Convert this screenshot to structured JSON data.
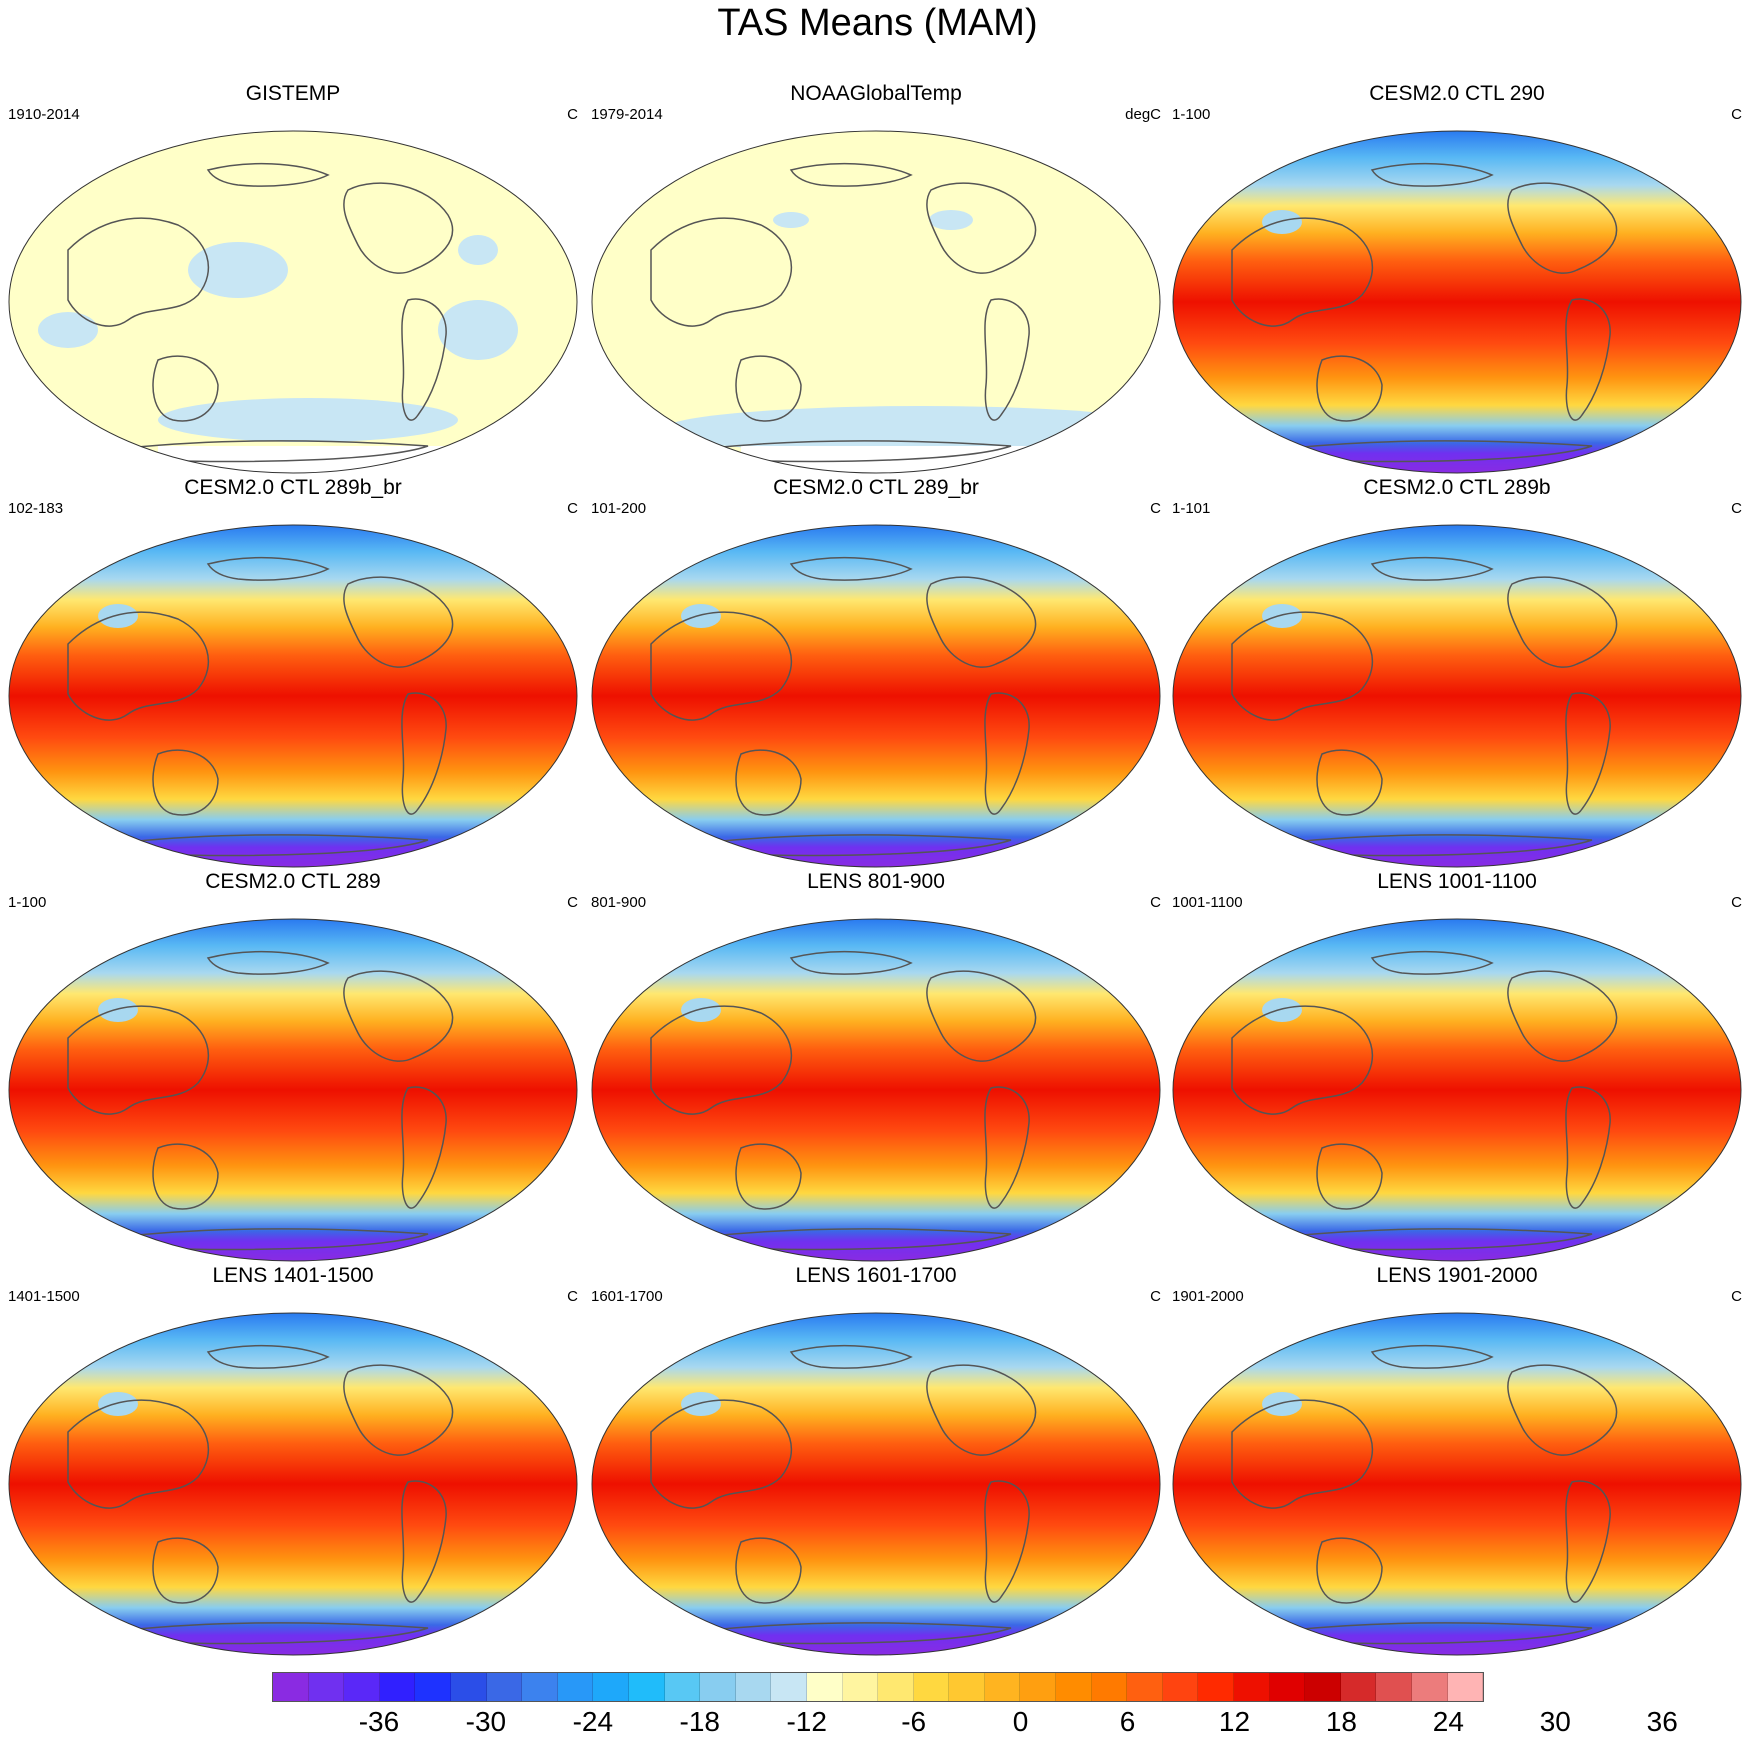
{
  "title": "TAS Means (MAM)",
  "panels": [
    {
      "title": "GISTEMP",
      "left_label": "1910-2014",
      "right_label": "C",
      "style": "obs"
    },
    {
      "title": "NOAAGlobalTemp",
      "left_label": "1979-2014",
      "right_label": "degC",
      "style": "obs"
    },
    {
      "title": "CESM2.0 CTL 290",
      "left_label": "1-100",
      "right_label": "C",
      "style": "model"
    },
    {
      "title": "CESM2.0 CTL 289b_br",
      "left_label": "102-183",
      "right_label": "C",
      "style": "model"
    },
    {
      "title": "CESM2.0 CTL 289_br",
      "left_label": "101-200",
      "right_label": "C",
      "style": "model"
    },
    {
      "title": "CESM2.0 CTL 289b",
      "left_label": "1-101",
      "right_label": "C",
      "style": "model"
    },
    {
      "title": "CESM2.0 CTL 289",
      "left_label": "1-100",
      "right_label": "C",
      "style": "model"
    },
    {
      "title": "LENS 801-900",
      "left_label": "801-900",
      "right_label": "C",
      "style": "model"
    },
    {
      "title": "LENS 1001-1100",
      "left_label": "1001-1100",
      "right_label": "C",
      "style": "model"
    },
    {
      "title": "LENS 1401-1500",
      "left_label": "1401-1500",
      "right_label": "C",
      "style": "model"
    },
    {
      "title": "LENS 1601-1700",
      "left_label": "1601-1700",
      "right_label": "C",
      "style": "model"
    },
    {
      "title": "LENS 1901-2000",
      "left_label": "1901-2000",
      "right_label": "C",
      "style": "model"
    }
  ],
  "colorbar": {
    "labels": [
      "-36",
      "-30",
      "-24",
      "-18",
      "-12",
      "-6",
      "0",
      "6",
      "12",
      "18",
      "24",
      "30",
      "36"
    ],
    "colors": [
      "#8a2be2",
      "#7030f0",
      "#5a28f8",
      "#3020ff",
      "#1e32ff",
      "#2b4ee8",
      "#3a68e6",
      "#3c82ee",
      "#2898f8",
      "#1ea8fa",
      "#20bcfa",
      "#58c8f4",
      "#88cdf0",
      "#a8d8f0",
      "#c8e6f4",
      "#ffffc8",
      "#fff5a0",
      "#ffe870",
      "#ffd840",
      "#ffc830",
      "#ffb420",
      "#ff9f10",
      "#ff8c00",
      "#ff7a00",
      "#ff6010",
      "#ff4410",
      "#ff2a00",
      "#ee1000",
      "#e00000",
      "#cc0000",
      "#d62a2a",
      "#e05050",
      "#ec7c7c",
      "#ffb4b4"
    ]
  }
}
